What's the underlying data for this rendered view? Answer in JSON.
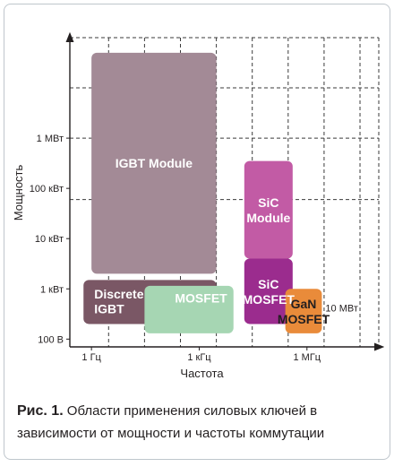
{
  "chart_data": {
    "type": "region",
    "xlabel": "Частота",
    "ylabel": "Мощность",
    "x_scale": "log",
    "y_scale": "log",
    "xlim_hz": [
      0.25,
      100000000.0
    ],
    "ylim_w": [
      70,
      100000000.0
    ],
    "x_ticks": [
      {
        "value": 1,
        "label": "1 Гц"
      },
      {
        "value": 1000,
        "label": "1 кГц"
      },
      {
        "value": 1000000,
        "label": "1 МГц"
      }
    ],
    "y_ticks": [
      {
        "value": 100,
        "label": "100 В"
      },
      {
        "value": 1000,
        "label": "1 кВт"
      },
      {
        "value": 10000,
        "label": "10 кВт"
      },
      {
        "value": 100000,
        "label": "100 кВт"
      },
      {
        "value": 1000000,
        "label": "1 МВт"
      }
    ],
    "grid_x": [
      3,
      30,
      300,
      3000,
      30000,
      300000,
      3000000,
      30000000
    ],
    "grid_y": [
      60000,
      1000000,
      10000000
    ],
    "extra_label": {
      "text": "10 МВт"
    },
    "regions": [
      {
        "name": "IGBT Module",
        "lines": [
          "IGBT Module"
        ],
        "color": "#a38a96",
        "text_color": "#ffffff",
        "x": [
          1,
          3000
        ],
        "y": [
          2000,
          50000000.0
        ]
      },
      {
        "name": "SiC Module",
        "lines": [
          "SiC",
          "Module"
        ],
        "color": "#c25ba5",
        "text_color": "#ffffff",
        "x": [
          18000,
          400000
        ],
        "y": [
          4000,
          350000
        ]
      },
      {
        "name": "SiC MOSFET",
        "lines": [
          "SiC",
          "MOSFET"
        ],
        "color": "#9b2c8e",
        "text_color": "#ffffff",
        "x": [
          18000,
          400000
        ],
        "y": [
          200,
          4000
        ]
      },
      {
        "name": "Discrete IGBT",
        "lines": [
          "Discrete",
          "IGBT"
        ],
        "color": "#7a5765",
        "text_color": "#ffffff",
        "x": [
          0.6,
          3000
        ],
        "y": [
          200,
          1500
        ]
      },
      {
        "name": "MOSFET",
        "lines": [
          "MOSFET"
        ],
        "color": "#a6d6b3",
        "text_color": "#ffffff",
        "x": [
          30,
          9000
        ],
        "y": [
          130,
          1150
        ]
      },
      {
        "name": "GaN MOSFET",
        "lines": [
          "GaN",
          "MOSFET"
        ],
        "color": "#e98b3a",
        "text_color": "#231f20",
        "x": [
          250000,
          2600000
        ],
        "y": [
          130,
          1000
        ]
      }
    ]
  },
  "caption": {
    "label": "Рис. 1.",
    "text": " Области применения силовых ключей в зависимости от мощности и частоты коммутации"
  }
}
